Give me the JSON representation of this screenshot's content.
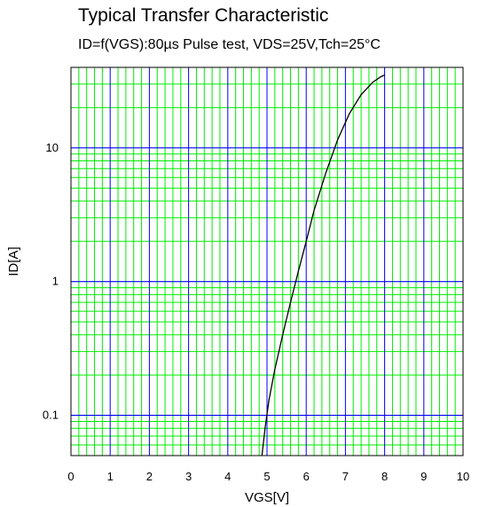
{
  "chart_data": {
    "type": "line",
    "title": "Typical Transfer Characteristic",
    "subtitle": "ID=f(VGS):80µs Pulse test, VDS=25V,Tch=25°C",
    "xlabel": "VGS[V]",
    "ylabel": "ID[A]",
    "xlim": [
      0,
      10
    ],
    "ylim": [
      0.05,
      40
    ],
    "yscale": "log",
    "x_ticks": [
      "0",
      "1",
      "2",
      "3",
      "4",
      "5",
      "6",
      "7",
      "8",
      "9",
      "10"
    ],
    "y_ticks": [
      {
        "value": 0.1,
        "label": "0.1"
      },
      {
        "value": 1,
        "label": "1"
      },
      {
        "value": 10,
        "label": "10"
      }
    ],
    "grid": true,
    "series": [
      {
        "name": "",
        "color": "#000000",
        "x": [
          4.87,
          4.95,
          5.05,
          5.2,
          5.4,
          5.6,
          5.8,
          6.0,
          6.2,
          6.5,
          6.8,
          7.1,
          7.4,
          7.7,
          7.9,
          8.0
        ],
        "y": [
          0.05,
          0.08,
          0.13,
          0.22,
          0.4,
          0.7,
          1.2,
          2.0,
          3.4,
          6.5,
          11.5,
          18.0,
          25.0,
          31.0,
          34.0,
          35.0
        ]
      }
    ]
  },
  "colors": {
    "major_grid": "#0000ff",
    "minor_grid": "#00ee00",
    "curve": "#000000"
  }
}
